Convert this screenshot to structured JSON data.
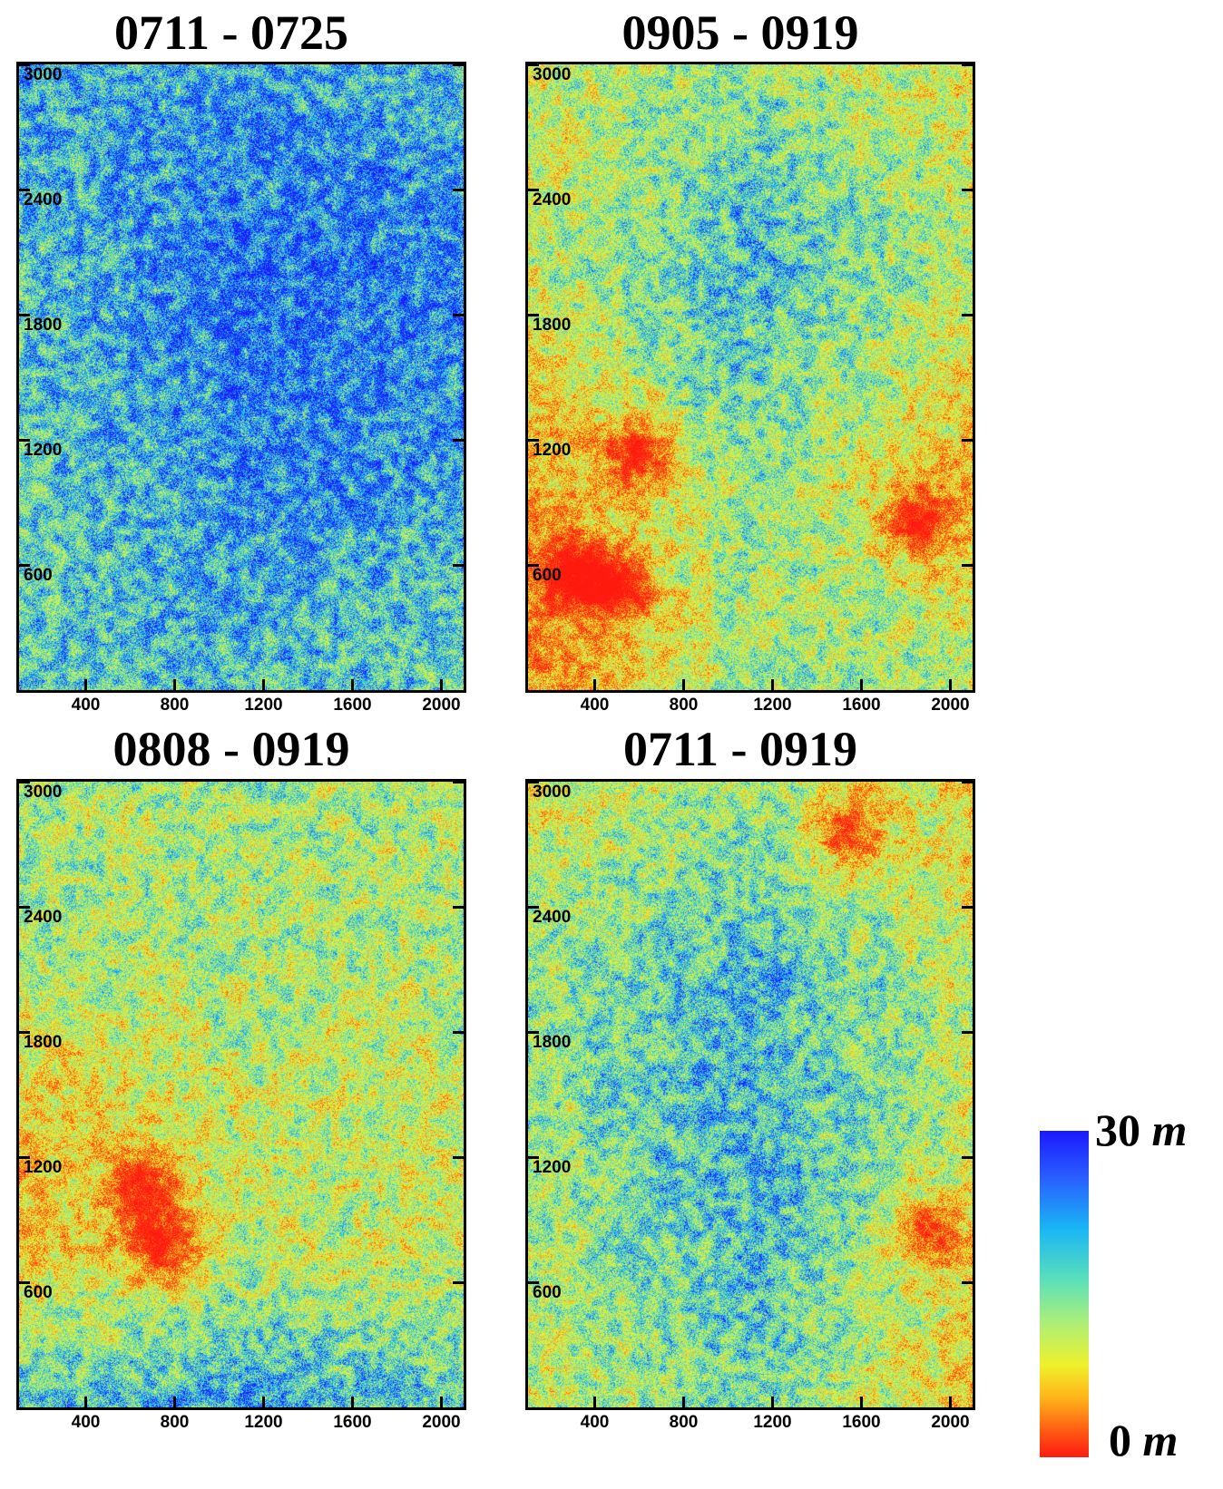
{
  "chart_data": [
    {
      "type": "heatmap",
      "title": "0711 - 0725",
      "xticks": [
        "400",
        "800",
        "1200",
        "1600",
        "2000"
      ],
      "yticks": [
        "3000",
        "2400",
        "1800",
        "1200",
        "600"
      ],
      "xlim": [
        100,
        2100
      ],
      "ylim": [
        0,
        3000
      ],
      "levels": [
        [
          0.78,
          0.8,
          0.74
        ],
        [
          0.72,
          0.9,
          0.86
        ],
        [
          0.68,
          0.84,
          0.8
        ],
        [
          0.7,
          0.74,
          0.66
        ]
      ],
      "hotspots": []
    },
    {
      "type": "heatmap",
      "title": "0905 - 0919",
      "xticks": [
        "400",
        "800",
        "1200",
        "1600",
        "2000"
      ],
      "yticks": [
        "3000",
        "2400",
        "1800",
        "1200",
        "600"
      ],
      "xlim": [
        100,
        2100
      ],
      "ylim": [
        0,
        3000
      ],
      "levels": [
        [
          0.48,
          0.62,
          0.46
        ],
        [
          0.5,
          0.76,
          0.52
        ],
        [
          0.3,
          0.6,
          0.34
        ],
        [
          0.24,
          0.58,
          0.56
        ]
      ],
      "hotspots": [
        [
          0.25,
          0.62
        ],
        [
          0.2,
          0.84
        ],
        [
          0.88,
          0.73
        ],
        [
          0.1,
          0.81
        ]
      ]
    },
    {
      "type": "heatmap",
      "title": "0808 - 0919",
      "xticks": [
        "400",
        "800",
        "1200",
        "1600",
        "2000"
      ],
      "yticks": [
        "3000",
        "2400",
        "1800",
        "1200",
        "600"
      ],
      "xlim": [
        100,
        2100
      ],
      "ylim": [
        0,
        3000
      ],
      "levels": [
        [
          0.56,
          0.58,
          0.54
        ],
        [
          0.58,
          0.56,
          0.56
        ],
        [
          0.4,
          0.52,
          0.5
        ],
        [
          0.34,
          0.52,
          0.5
        ],
        [
          0.72,
          0.8,
          0.72
        ]
      ],
      "hotspots": [
        [
          0.28,
          0.65
        ],
        [
          0.32,
          0.74
        ]
      ]
    },
    {
      "type": "heatmap",
      "title": "0711 - 0919",
      "xticks": [
        "400",
        "800",
        "1200",
        "1600",
        "2000"
      ],
      "yticks": [
        "3000",
        "2400",
        "1800",
        "1200",
        "600"
      ],
      "xlim": [
        100,
        2100
      ],
      "ylim": [
        0,
        3000
      ],
      "levels": [
        [
          0.46,
          0.58,
          0.4
        ],
        [
          0.6,
          0.76,
          0.52
        ],
        [
          0.56,
          0.76,
          0.5
        ],
        [
          0.5,
          0.66,
          0.36
        ]
      ],
      "hotspots": [
        [
          0.9,
          0.72
        ],
        [
          0.72,
          0.08
        ]
      ]
    }
  ],
  "colorbar": {
    "max_value": "30",
    "min_value": "0",
    "unit": "m",
    "colors": [
      "#1a1aff",
      "#19b6f5",
      "#a7ef7d",
      "#f0f02a",
      "#ff5a14",
      "#ff1a10"
    ]
  }
}
